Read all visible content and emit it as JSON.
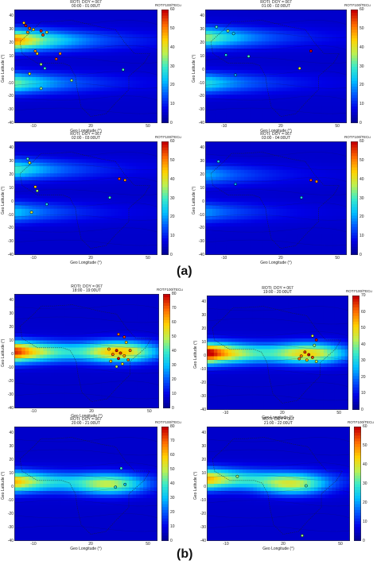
{
  "figure_labels": {
    "a": "(a)",
    "b": "(b)"
  },
  "chart_data": [
    {
      "type": "heatmap",
      "group": "a",
      "title_line1": "ROTI; DOY = 067",
      "title_line2": "00:00 - 01:00UT",
      "colorbar_label": "ROTI*100/TECu",
      "colorbar_range": [
        0,
        60
      ],
      "colorbar_ticks": [
        0,
        10,
        20,
        30,
        40,
        50,
        60
      ],
      "xlabel": "Geo Longitude (°)",
      "ylabel": "Geo Latitude (°)",
      "xlim": [
        -20,
        55
      ],
      "ylim": [
        -40,
        45
      ],
      "xticks": [
        -10,
        20,
        50
      ],
      "yticks": [
        40,
        30,
        20,
        10,
        0,
        -10,
        -20,
        -30,
        -40
      ],
      "bands": [
        {
          "lat": 22,
          "lon_peak": -18,
          "value": 45
        },
        {
          "lat": -10,
          "lon_peak": -18,
          "value": 28
        }
      ],
      "stations": [
        {
          "lon": -15,
          "lat": 35,
          "roti": 45
        },
        {
          "lon": -14,
          "lat": 33,
          "roti": 60
        },
        {
          "lon": -12,
          "lat": 31,
          "roti": 55
        },
        {
          "lon": -13,
          "lat": 28,
          "roti": 50
        },
        {
          "lon": -10,
          "lat": 30,
          "roti": 45
        },
        {
          "lon": -6,
          "lat": 29,
          "roti": 58
        },
        {
          "lon": -5,
          "lat": 26,
          "roti": 55
        },
        {
          "lon": -3,
          "lat": 28,
          "roti": 40
        },
        {
          "lon": -9,
          "lat": 14,
          "roti": 50
        },
        {
          "lon": -8,
          "lat": 12,
          "roti": 45
        },
        {
          "lon": -6,
          "lat": 4,
          "roti": 35
        },
        {
          "lon": -4,
          "lat": 1,
          "roti": 30
        },
        {
          "lon": 2,
          "lat": 8,
          "roti": 55
        },
        {
          "lon": 4,
          "lat": 12,
          "roti": 50
        },
        {
          "lon": 10,
          "lat": -8,
          "roti": 35
        },
        {
          "lon": -12,
          "lat": -3,
          "roti": 40
        },
        {
          "lon": -6,
          "lat": -14,
          "roti": 35
        },
        {
          "lon": 37,
          "lat": 0,
          "roti": 30
        }
      ]
    },
    {
      "type": "heatmap",
      "group": "a",
      "title_line1": "ROTI; DOY = 067",
      "title_line2": "01:00 - 02:00UT",
      "colorbar_label": "ROTI*100/TECu",
      "colorbar_range": [
        0,
        60
      ],
      "colorbar_ticks": [
        0,
        10,
        20,
        30,
        40,
        50,
        60
      ],
      "xlabel": "Geo Longitude (°)",
      "ylabel": "Geo Latitude (°)",
      "xlim": [
        -20,
        55
      ],
      "ylim": [
        -40,
        45
      ],
      "xticks": [
        -10,
        20,
        50
      ],
      "yticks": [
        40,
        30,
        20,
        10,
        0,
        -10,
        -20,
        -30,
        -40
      ],
      "bands": [
        {
          "lat": 24,
          "lon_peak": -18,
          "value": 30
        },
        {
          "lat": -10,
          "lon_peak": -18,
          "value": 22
        }
      ],
      "stations": [
        {
          "lon": -14,
          "lat": 32,
          "roti": 30
        },
        {
          "lon": -8,
          "lat": 29,
          "roti": 35
        },
        {
          "lon": -5,
          "lat": 27,
          "roti": 25
        },
        {
          "lon": 3,
          "lat": 10,
          "roti": 30
        },
        {
          "lon": -9,
          "lat": 11,
          "roti": 25
        },
        {
          "lon": 36,
          "lat": 14,
          "roti": 60
        },
        {
          "lon": 30,
          "lat": 1,
          "roti": 40
        },
        {
          "lon": -4,
          "lat": -4,
          "roti": 20
        }
      ]
    },
    {
      "type": "heatmap",
      "group": "a",
      "title_line1": "ROTI; DOY = 067",
      "title_line2": "02:00 - 03:00UT",
      "colorbar_label": "ROTI*100/TECu",
      "colorbar_range": [
        0,
        60
      ],
      "colorbar_ticks": [
        0,
        10,
        20,
        30,
        40,
        50,
        60
      ],
      "xlabel": "Geo Longitude (°)",
      "ylabel": "Geo Latitude (°)",
      "xlim": [
        -20,
        55
      ],
      "ylim": [
        -40,
        45
      ],
      "xticks": [
        -10,
        20,
        50
      ],
      "yticks": [
        40,
        30,
        20,
        10,
        0,
        -10,
        -20,
        -30,
        -40
      ],
      "bands": [
        {
          "lat": 24,
          "lon_peak": -18,
          "value": 25
        },
        {
          "lat": -8,
          "lon_peak": -18,
          "value": 18
        }
      ],
      "stations": [
        {
          "lon": -13,
          "lat": 32,
          "roti": 30
        },
        {
          "lon": -12,
          "lat": 29,
          "roti": 40
        },
        {
          "lon": -9,
          "lat": 11,
          "roti": 45
        },
        {
          "lon": -8,
          "lat": 8,
          "roti": 35
        },
        {
          "lon": 35,
          "lat": 17,
          "roti": 55
        },
        {
          "lon": 38,
          "lat": 16,
          "roti": 50
        },
        {
          "lon": 30,
          "lat": 3,
          "roti": 30
        },
        {
          "lon": -3,
          "lat": -2,
          "roti": 25
        },
        {
          "lon": -11,
          "lat": -8,
          "roti": 40
        }
      ]
    },
    {
      "type": "heatmap",
      "group": "a",
      "title_line1": "ROTI; DOY = 067",
      "title_line2": "03:00 - 04:00UT",
      "colorbar_label": "ROTI*100/TECu",
      "colorbar_range": [
        0,
        60
      ],
      "colorbar_ticks": [
        0,
        10,
        20,
        30,
        40,
        50,
        60
      ],
      "xlabel": "Geo Longitude (°)",
      "ylabel": "Geo Latitude (°)",
      "xlim": [
        -20,
        55
      ],
      "ylim": [
        -40,
        45
      ],
      "xticks": [
        -10,
        20,
        50
      ],
      "yticks": [
        40,
        30,
        20,
        10,
        0,
        -10,
        -20,
        -30,
        -40
      ],
      "bands": [
        {
          "lat": 20,
          "lon_peak": -18,
          "value": 16
        },
        {
          "lat": -8,
          "lon_peak": -18,
          "value": 14
        }
      ],
      "stations": [
        {
          "lon": -13,
          "lat": 30,
          "roti": 25
        },
        {
          "lon": 36,
          "lat": 16,
          "roti": 55
        },
        {
          "lon": 39,
          "lat": 15,
          "roti": 50
        },
        {
          "lon": 31,
          "lat": 3,
          "roti": 25
        },
        {
          "lon": -4,
          "lat": 13,
          "roti": 20
        }
      ]
    },
    {
      "type": "heatmap",
      "group": "b",
      "title_line1": "ROTI; DOY = 067",
      "title_line2": "18:00 - 19:00UT",
      "colorbar_label": "ROTI*100/TECu",
      "colorbar_range": [
        0,
        80
      ],
      "colorbar_ticks": [
        0,
        10,
        20,
        30,
        40,
        50,
        60,
        70,
        80
      ],
      "xlabel": "Geo Longitude (°)",
      "ylabel": "Geo Latitude (°)",
      "xlim": [
        -20,
        55
      ],
      "ylim": [
        -40,
        45
      ],
      "xticks": [
        -10,
        20,
        50
      ],
      "yticks": [
        40,
        30,
        20,
        10,
        0,
        -10,
        -20,
        -30,
        -40
      ],
      "bands": [
        {
          "lat": 2,
          "lon_peak": -18,
          "value": 70
        },
        {
          "lat": 2,
          "lon_peak": 35,
          "value": 45
        }
      ],
      "stations": [
        {
          "lon": 34,
          "lat": 15,
          "roti": 70
        },
        {
          "lon": 37,
          "lat": 13,
          "roti": 75
        },
        {
          "lon": 38,
          "lat": 9,
          "roti": 60
        },
        {
          "lon": 33,
          "lat": 3,
          "roti": 80
        },
        {
          "lon": 35,
          "lat": 1,
          "roti": 75
        },
        {
          "lon": 31,
          "lat": 0,
          "roti": 70
        },
        {
          "lon": 37,
          "lat": -1,
          "roti": 65
        },
        {
          "lon": 34,
          "lat": -3,
          "roti": 80
        },
        {
          "lon": 39,
          "lat": -4,
          "roti": 70
        },
        {
          "lon": 30,
          "lat": -5,
          "roti": 60
        },
        {
          "lon": 36,
          "lat": -7,
          "roti": 55
        },
        {
          "lon": 33,
          "lat": -9,
          "roti": 50
        },
        {
          "lon": 29,
          "lat": 4,
          "roti": 65
        },
        {
          "lon": 40,
          "lat": 3,
          "roti": 70
        }
      ]
    },
    {
      "type": "heatmap",
      "group": "b",
      "title_line1": "ROTI; DOY = 067",
      "title_line2": "19:00 - 20:00UT",
      "colorbar_label": "ROTI*100/TECu",
      "colorbar_range": [
        0,
        70
      ],
      "colorbar_ticks": [
        0,
        10,
        20,
        30,
        40,
        50,
        60,
        70
      ],
      "xlabel": "Geo Longitude (°)",
      "ylabel": "Geo Latitude (°)",
      "xlim": [
        -20,
        55
      ],
      "ylim": [
        -40,
        45
      ],
      "xticks": [
        -10,
        20,
        50
      ],
      "yticks": [
        40,
        30,
        20,
        10,
        0,
        -10,
        -20,
        -30,
        -40
      ],
      "bands": [
        {
          "lat": 2,
          "lon_peak": -18,
          "value": 68
        },
        {
          "lat": 2,
          "lon_peak": 35,
          "value": 35
        }
      ],
      "stations": [
        {
          "lon": 36,
          "lat": 15,
          "roti": 45
        },
        {
          "lon": 38,
          "lat": 12,
          "roti": 70
        },
        {
          "lon": 37,
          "lat": 8,
          "roti": 40
        },
        {
          "lon": 32,
          "lat": 3,
          "roti": 65
        },
        {
          "lon": 34,
          "lat": 1,
          "roti": 70
        },
        {
          "lon": 30,
          "lat": 0,
          "roti": 60
        },
        {
          "lon": 36,
          "lat": -1,
          "roti": 65
        },
        {
          "lon": 33,
          "lat": -3,
          "roti": 55
        },
        {
          "lon": 29,
          "lat": -2,
          "roti": 60
        },
        {
          "lon": 38,
          "lat": -4,
          "roti": 45
        }
      ]
    },
    {
      "type": "heatmap",
      "group": "b",
      "title_line1": "ROTI; DOY = 067",
      "title_line2": "20:00 - 21:00UT",
      "colorbar_label": "ROTI*100/TECu",
      "colorbar_range": [
        0,
        80
      ],
      "colorbar_ticks": [
        0,
        10,
        20,
        30,
        40,
        50,
        60,
        70,
        80
      ],
      "xlabel": "Geo Longitude (°)",
      "ylabel": "Geo Latitude (°)",
      "xlim": [
        -20,
        55
      ],
      "ylim": [
        -40,
        45
      ],
      "xticks": [
        -10,
        20,
        50
      ],
      "yticks": [
        40,
        30,
        20,
        10,
        0,
        -10,
        -20,
        -30,
        -40
      ],
      "bands": [
        {
          "lat": 4,
          "lon_peak": -18,
          "value": 55
        },
        {
          "lat": 2,
          "lon_peak": 30,
          "value": 35
        }
      ],
      "stations": [
        {
          "lon": 36,
          "lat": 14,
          "roti": 40
        },
        {
          "lon": 33,
          "lat": 0,
          "roti": 35
        },
        {
          "lon": 38,
          "lat": 2,
          "roti": 30
        }
      ]
    },
    {
      "type": "heatmap",
      "group": "b",
      "title_line1": "ROTI; DOY = 067",
      "title_line2": "21:00 - 22:00UT",
      "colorbar_label": "ROTI*100/TECu",
      "colorbar_range": [
        0,
        60
      ],
      "colorbar_ticks": [
        0,
        10,
        20,
        30,
        40,
        50,
        60
      ],
      "xlabel": "Geo Longitude (°)",
      "ylabel": "Geo Latitude (°)",
      "xlim": [
        -20,
        55
      ],
      "ylim": [
        -40,
        45
      ],
      "xticks": [
        -10,
        20,
        50
      ],
      "yticks": [
        40,
        30,
        20,
        10,
        0,
        -10,
        -20,
        -30,
        -40
      ],
      "bands": [
        {
          "lat": 6,
          "lon_peak": -18,
          "value": 42
        },
        {
          "lat": 2,
          "lon_peak": 25,
          "value": 28
        }
      ],
      "stations": [
        {
          "lon": -4,
          "lat": 8,
          "roti": 35
        },
        {
          "lon": 32,
          "lat": 1,
          "roti": 30
        },
        {
          "lon": 30,
          "lat": -36,
          "roti": 35
        }
      ]
    }
  ]
}
